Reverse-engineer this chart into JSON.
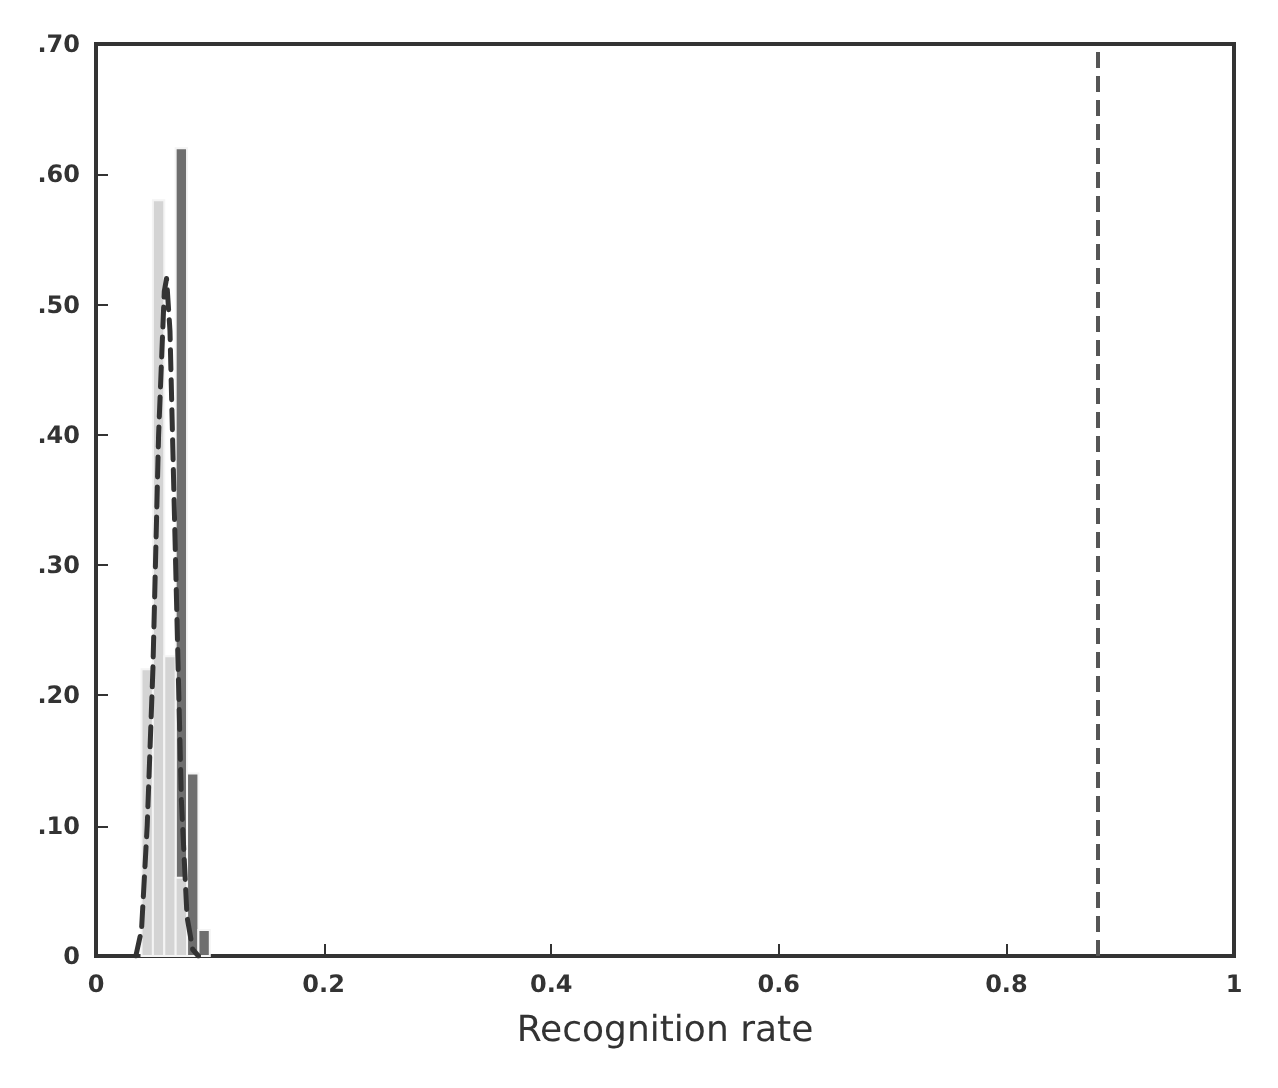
{
  "chart_data": {
    "type": "histogram",
    "xlabel": "Recognition rate",
    "xlim": [
      0,
      1
    ],
    "xticks": [
      0,
      0.2,
      0.4,
      0.6,
      0.8,
      1
    ],
    "ylim": [
      0,
      0.7
    ],
    "yticks": [
      {
        "value": 0,
        "label": "0"
      },
      {
        "value": 0.1,
        "label": ".10"
      },
      {
        "value": 0.2,
        "label": ".20"
      },
      {
        "value": 0.3,
        "label": ".30"
      },
      {
        "value": 0.4,
        "label": ".40"
      },
      {
        "value": 0.5,
        "label": ".50"
      },
      {
        "value": 0.6,
        "label": ".60"
      },
      {
        "value": 0.7,
        "label": ".70"
      }
    ],
    "grid": false,
    "series": [
      {
        "color": "#6e6e6e",
        "bins": [
          0.07,
          0.08,
          0.09,
          0.1
        ],
        "values": [
          0.62,
          0.14,
          0.02
        ]
      },
      {
        "color": "#d4d4d4",
        "bins": [
          0.04,
          0.05,
          0.06,
          0.07,
          0.08
        ],
        "values": [
          0.22,
          0.58,
          0.23,
          0.06
        ]
      },
      {
        "type": "line",
        "color": "#333333",
        "line_style": "dashed",
        "marker": "none",
        "x": [
          0.035,
          0.04,
          0.045,
          0.05,
          0.055,
          0.06,
          0.062,
          0.065,
          0.07,
          0.075,
          0.08,
          0.085,
          0.09
        ],
        "values": [
          0,
          0.02,
          0.1,
          0.22,
          0.4,
          0.51,
          0.52,
          0.48,
          0.3,
          0.12,
          0.03,
          0.005,
          0
        ]
      }
    ],
    "ref_lines": [
      {
        "axis": "x",
        "value": 0.88,
        "color": "#555555",
        "line_style": "dashed"
      }
    ]
  }
}
